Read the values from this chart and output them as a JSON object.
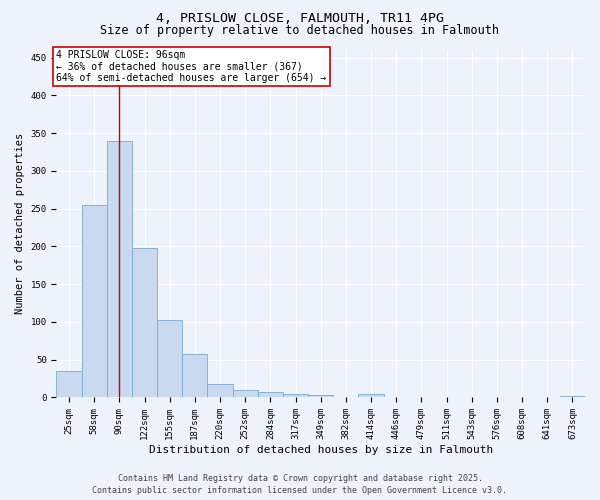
{
  "title_line1": "4, PRISLOW CLOSE, FALMOUTH, TR11 4PG",
  "title_line2": "Size of property relative to detached houses in Falmouth",
  "xlabel": "Distribution of detached houses by size in Falmouth",
  "ylabel": "Number of detached properties",
  "categories": [
    "25sqm",
    "58sqm",
    "90sqm",
    "122sqm",
    "155sqm",
    "187sqm",
    "220sqm",
    "252sqm",
    "284sqm",
    "317sqm",
    "349sqm",
    "382sqm",
    "414sqm",
    "446sqm",
    "479sqm",
    "511sqm",
    "543sqm",
    "576sqm",
    "608sqm",
    "641sqm",
    "673sqm"
  ],
  "values": [
    35,
    255,
    340,
    198,
    103,
    58,
    18,
    10,
    7,
    5,
    3,
    0,
    4,
    0,
    0,
    0,
    0,
    0,
    0,
    0,
    2
  ],
  "bar_color": "#c9d9f0",
  "bar_edge_color": "#7aaad0",
  "bar_linewidth": 0.6,
  "vline_x_index": 2,
  "vline_color": "#cc0000",
  "vline_linewidth": 1.0,
  "annotation_text": "4 PRISLOW CLOSE: 96sqm\n← 36% of detached houses are smaller (367)\n64% of semi-detached houses are larger (654) →",
  "annotation_box_color": "#ffffff",
  "annotation_box_edge": "#cc0000",
  "ylim": [
    0,
    460
  ],
  "yticks": [
    0,
    50,
    100,
    150,
    200,
    250,
    300,
    350,
    400,
    450
  ],
  "background_color": "#eef2fb",
  "grid_color": "#ffffff",
  "footer_line1": "Contains HM Land Registry data © Crown copyright and database right 2025.",
  "footer_line2": "Contains public sector information licensed under the Open Government Licence v3.0.",
  "title_fontsize": 9.5,
  "subtitle_fontsize": 8.5,
  "xlabel_fontsize": 8,
  "ylabel_fontsize": 7.5,
  "tick_fontsize": 6.5,
  "footer_fontsize": 6,
  "annotation_fontsize": 7
}
